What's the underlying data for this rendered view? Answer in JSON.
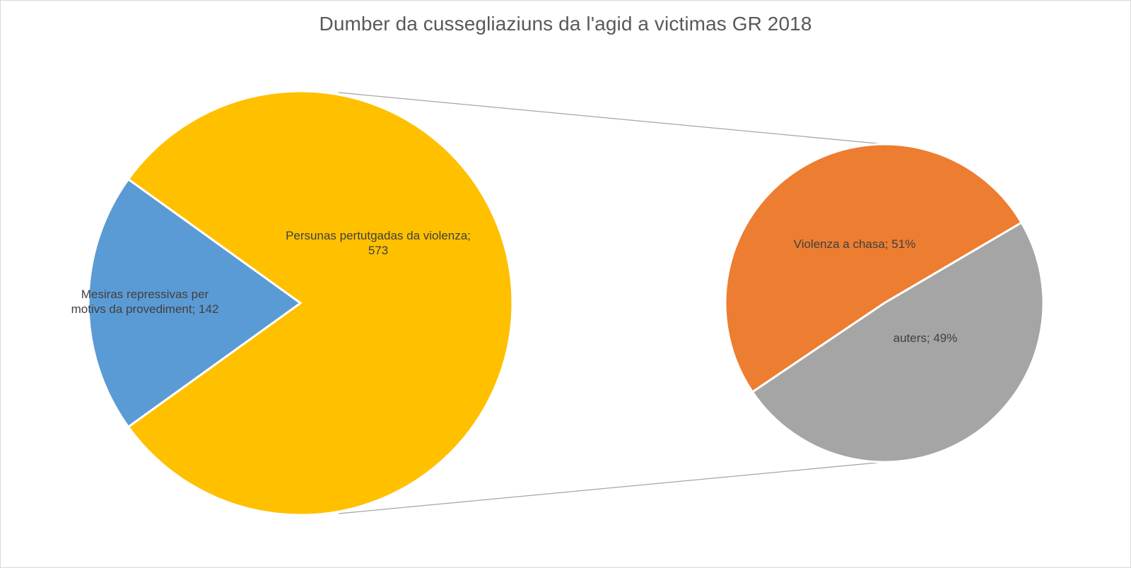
{
  "chart_data": {
    "type": "pie",
    "subtype": "pie-of-pie",
    "title": "Dumber da cussegliaziuns da l'agid a victimas GR 2018",
    "main_pie": {
      "slices": [
        {
          "label_lines": [
            "Persunas pertutgadas da violenza;",
            "573"
          ],
          "value": 573,
          "color": "#FFC000"
        },
        {
          "label_lines": [
            "Mesiras repressivas per",
            "motivs da provediment; 142"
          ],
          "value": 142,
          "color": "#5B9BD5"
        }
      ]
    },
    "secondary_pie": {
      "slices": [
        {
          "label_lines": [
            "Violenza a chasa; 51%"
          ],
          "percent": 51,
          "color": "#ED7D31"
        },
        {
          "label_lines": [
            "auters; 49%"
          ],
          "percent": 49,
          "color": "#A5A5A5"
        }
      ]
    },
    "legend": "none",
    "grid": false
  }
}
